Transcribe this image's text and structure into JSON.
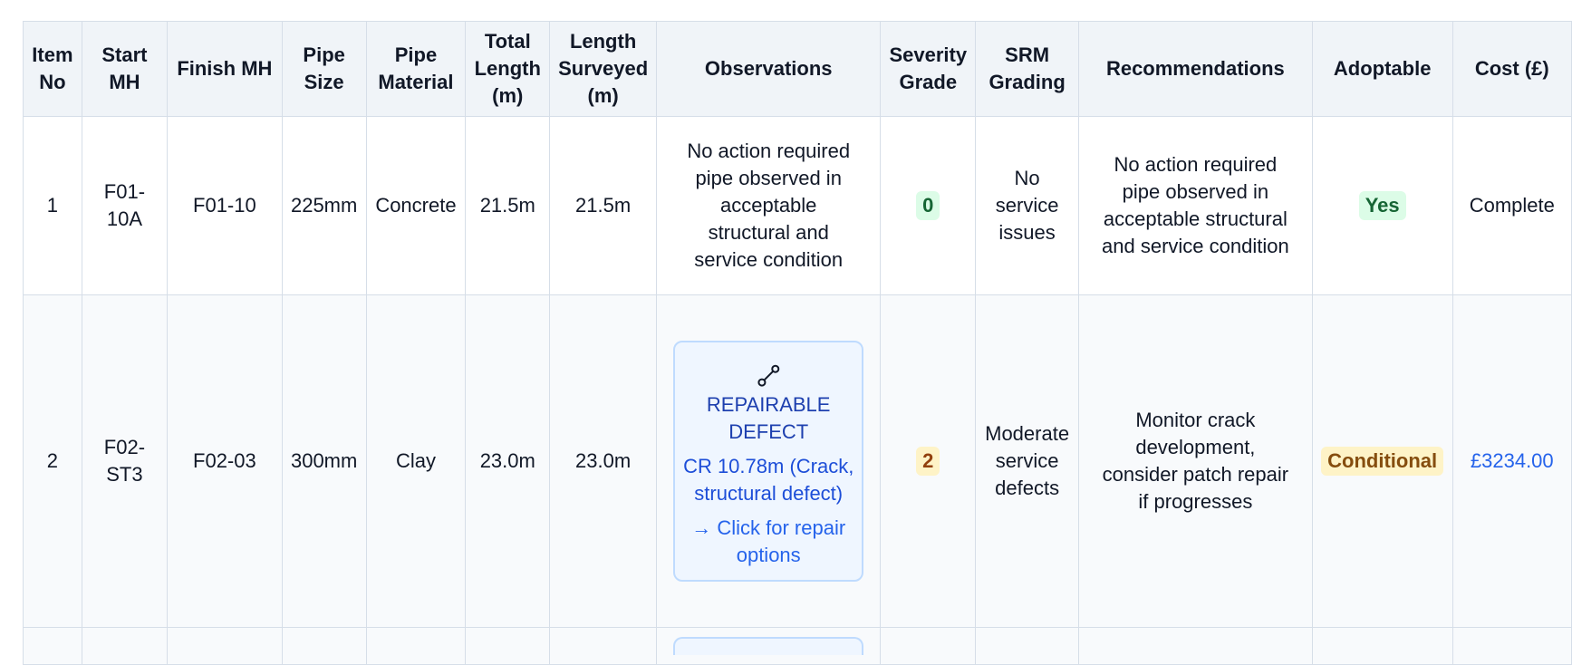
{
  "table": {
    "headers": [
      "Item No",
      "Start MH",
      "Finish MH",
      "Pipe Size",
      "Pipe Material",
      "Total Length (m)",
      "Length Surveyed (m)",
      "Observations",
      "Severity Grade",
      "SRM Grading",
      "Recommendations",
      "Adoptable",
      "Cost (£)"
    ],
    "rows": [
      {
        "item": "1",
        "start": "F01-10A",
        "finish": "F01-10",
        "size": "225mm",
        "material": "Concrete",
        "total": "21.5m",
        "surveyed": "21.5m",
        "observations": "No action required pipe observed in acceptable structural and service condition",
        "severity": "0",
        "srm": "No service issues",
        "recommendations": "No action required pipe observed in acceptable structural and service condition",
        "adoptable": "Yes",
        "cost": "Complete"
      },
      {
        "item": "2",
        "start": "F02-ST3",
        "finish": "F02-03",
        "size": "300mm",
        "material": "Clay",
        "total": "23.0m",
        "surveyed": "23.0m",
        "observation_card": {
          "icon": "wrench-icon",
          "title": "REPAIRABLE DEFECT",
          "desc": "CR 10.78m (Crack, structural defect)",
          "link": "→ Click for repair options"
        },
        "severity": "2",
        "srm": "Moderate service defects",
        "recommendations": "Monitor crack development, consider patch repair if progresses",
        "adoptable": "Conditional",
        "cost": "£3234.00"
      }
    ]
  },
  "colors": {
    "header_bg": "#f0f4f8",
    "grid": "#d6dee8",
    "link_blue": "#2563eb",
    "grade_green": "#dcfce7",
    "grade_amber": "#fef3c7"
  }
}
